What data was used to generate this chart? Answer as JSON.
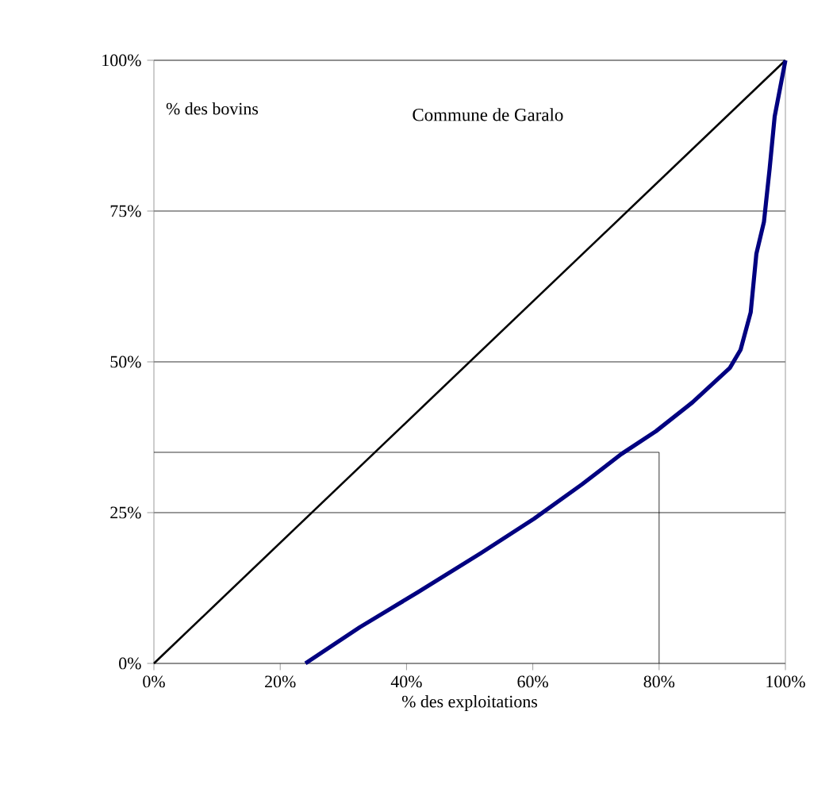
{
  "chart_data": {
    "type": "line",
    "title": "Commune de Garalo",
    "xlabel": "% des exploitations",
    "ylabel": "% des bovins",
    "xlim": [
      0,
      100
    ],
    "ylim": [
      0,
      100
    ],
    "xticks": [
      {
        "value": 0,
        "label": "0%"
      },
      {
        "value": 20,
        "label": "20%"
      },
      {
        "value": 40,
        "label": "40%"
      },
      {
        "value": 60,
        "label": "60%"
      },
      {
        "value": 80,
        "label": "80%"
      },
      {
        "value": 100,
        "label": "100%"
      }
    ],
    "yticks": [
      {
        "value": 0,
        "label": "0%"
      },
      {
        "value": 25,
        "label": "25%"
      },
      {
        "value": 50,
        "label": "50%"
      },
      {
        "value": 75,
        "label": "75%"
      },
      {
        "value": 100,
        "label": "100%"
      }
    ],
    "grid": "y",
    "marker": "none",
    "line_style": "solid",
    "series": [
      {
        "color": "#000000",
        "x": [
          0,
          100
        ],
        "values": [
          0,
          100
        ]
      },
      {
        "color": "#000000",
        "x": [
          0,
          80,
          80
        ],
        "values": [
          35,
          35,
          0
        ]
      },
      {
        "color": "#000080",
        "x": [
          24,
          32.6,
          41.8,
          51.8,
          60.2,
          67.8,
          74,
          79.5,
          85.3,
          91.2,
          92.9,
          94.5,
          95.4,
          96.6,
          97.5,
          98.3,
          100
        ],
        "values": [
          0,
          6,
          11.8,
          18.3,
          24,
          29.7,
          34.7,
          38.5,
          43.3,
          49,
          52,
          58.2,
          67.9,
          73.2,
          82,
          90.7,
          100
        ]
      }
    ]
  }
}
